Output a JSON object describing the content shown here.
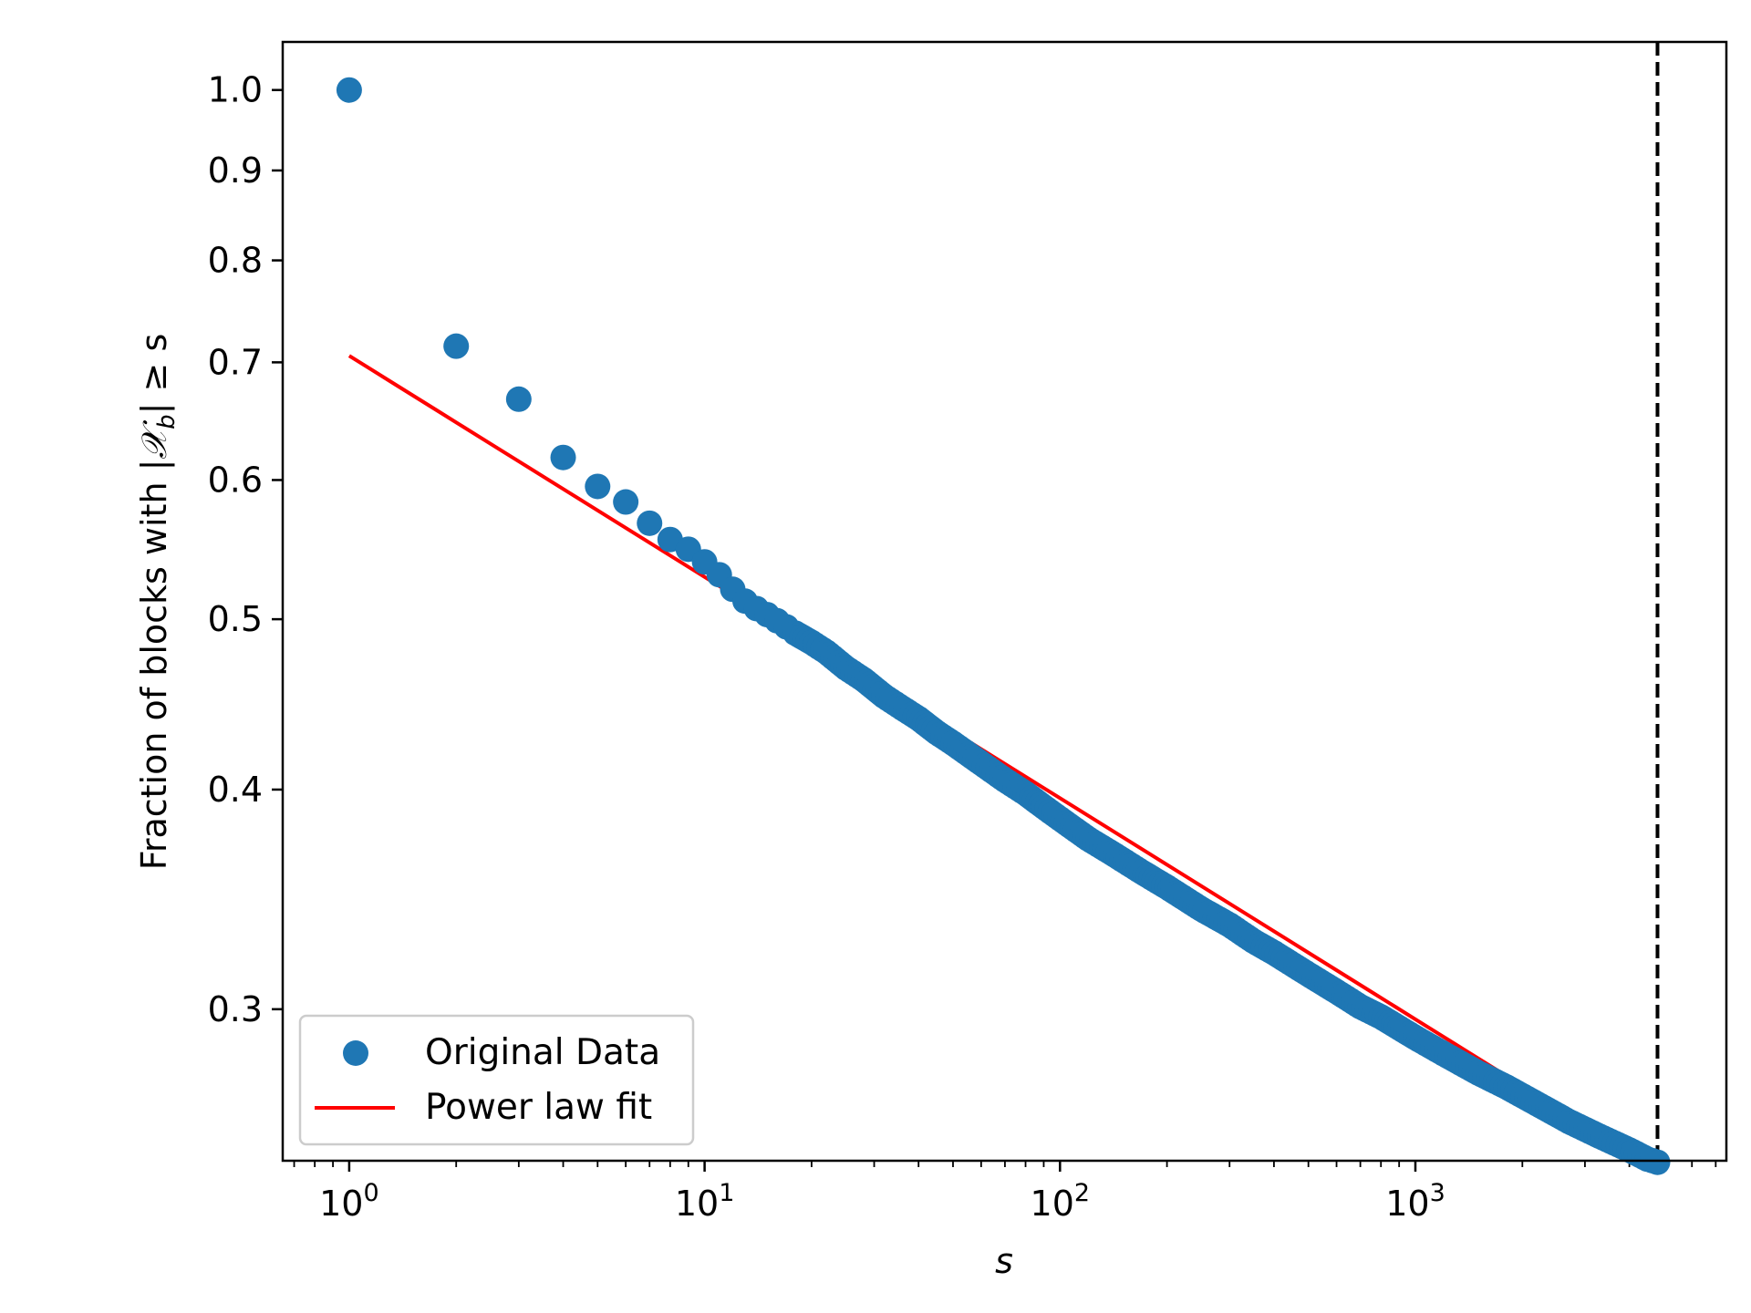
{
  "chart_data": {
    "type": "scatter",
    "xscale": "log",
    "yscale": "log",
    "xlim": [
      0.65,
      7500
    ],
    "ylim": [
      0.246,
      1.065
    ],
    "xlabel": "s",
    "ylabel_prefix": "Fraction of blocks with |",
    "ylabel_symbol": "𝒳",
    "ylabel_subscript": "b",
    "ylabel_suffix": "| ≥ s",
    "x_ticks": [
      {
        "value": 1,
        "base": "10",
        "exp": "0"
      },
      {
        "value": 10,
        "base": "10",
        "exp": "1"
      },
      {
        "value": 100,
        "base": "10",
        "exp": "2"
      },
      {
        "value": 1000,
        "base": "10",
        "exp": "3"
      }
    ],
    "y_ticks": [
      {
        "value": 0.3,
        "label": "0.3"
      },
      {
        "value": 0.4,
        "label": "0.4"
      },
      {
        "value": 0.5,
        "label": "0.5"
      },
      {
        "value": 0.6,
        "label": "0.6"
      },
      {
        "value": 0.7,
        "label": "0.7"
      },
      {
        "value": 0.8,
        "label": "0.8"
      },
      {
        "value": 0.9,
        "label": "0.9"
      },
      {
        "value": 1.0,
        "label": "1.0"
      }
    ],
    "series": [
      {
        "name": "Original Data",
        "type": "scatter",
        "color": "#1f77b4",
        "points": [
          [
            1,
            1.0
          ],
          [
            2,
            0.715
          ],
          [
            3,
            0.667
          ],
          [
            4,
            0.618
          ],
          [
            5,
            0.595
          ],
          [
            6,
            0.583
          ],
          [
            7,
            0.567
          ],
          [
            8,
            0.555
          ],
          [
            9,
            0.548
          ],
          [
            10,
            0.539
          ],
          [
            11,
            0.53
          ],
          [
            12,
            0.52
          ],
          [
            13,
            0.512
          ],
          [
            14,
            0.507
          ],
          [
            15,
            0.503
          ],
          [
            16,
            0.499
          ],
          [
            17,
            0.495
          ],
          [
            18,
            0.491
          ],
          [
            20,
            0.485
          ],
          [
            22,
            0.479
          ],
          [
            25,
            0.469
          ],
          [
            28,
            0.462
          ],
          [
            32,
            0.452
          ],
          [
            36,
            0.445
          ],
          [
            40,
            0.439
          ],
          [
            45,
            0.431
          ],
          [
            50,
            0.425
          ],
          [
            60,
            0.414
          ],
          [
            70,
            0.405
          ],
          [
            80,
            0.398
          ],
          [
            90,
            0.391
          ],
          [
            100,
            0.385
          ],
          [
            120,
            0.375
          ],
          [
            140,
            0.368
          ],
          [
            170,
            0.359
          ],
          [
            200,
            0.352
          ],
          [
            250,
            0.342
          ],
          [
            300,
            0.335
          ],
          [
            350,
            0.328
          ],
          [
            400,
            0.323
          ],
          [
            500,
            0.314
          ],
          [
            600,
            0.307
          ],
          [
            700,
            0.301
          ],
          [
            800,
            0.297
          ],
          [
            1000,
            0.289
          ],
          [
            1200,
            0.283
          ],
          [
            1500,
            0.276
          ],
          [
            1800,
            0.271
          ],
          [
            2200,
            0.265
          ],
          [
            2700,
            0.259
          ],
          [
            3300,
            0.254
          ],
          [
            4000,
            0.2495
          ],
          [
            4500,
            0.2465
          ],
          [
            4800,
            0.2455
          ]
        ]
      },
      {
        "name": "Power law fit",
        "type": "line",
        "color": "#ff0000",
        "x_start": 1,
        "x_end": 4800,
        "coefficient": 0.706,
        "exponent": -0.1258
      }
    ],
    "vline": {
      "x": 4800,
      "color": "#000000",
      "style": "dashed"
    },
    "legend": {
      "location": "lower-left",
      "entries": [
        "Original Data",
        "Power law fit"
      ]
    }
  }
}
